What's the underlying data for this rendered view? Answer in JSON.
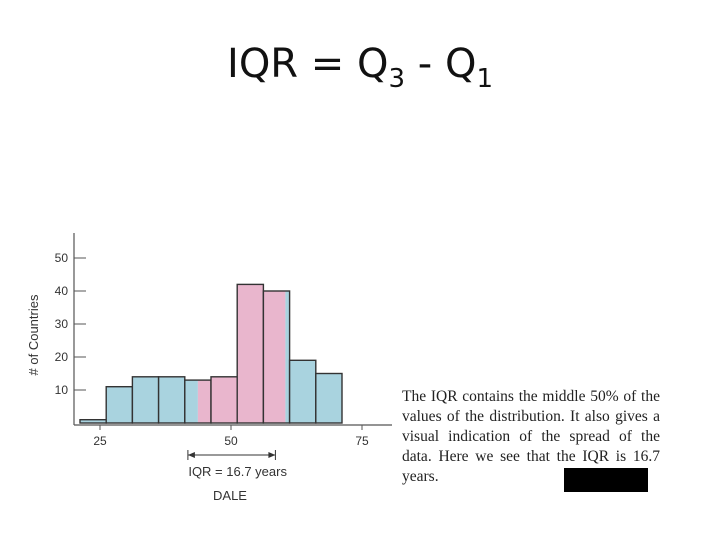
{
  "slide": {
    "title_base": "IQR = Q",
    "title_sub1": "3",
    "title_mid": " - Q",
    "title_sub2": "1"
  },
  "caption": {
    "text": "The IQR contains the middle 50% of the values of the distribution. It also gives a visual indication of the spread of the data. Here we see that the IQR is 16.7 years."
  },
  "colors": {
    "bar_fill": "#a9d3df",
    "iqr_fill": "#e9b6cd",
    "bar_stroke": "#333333"
  },
  "chart_data": {
    "type": "bar",
    "xlabel": "DALE",
    "ylabel": "# of Countries",
    "xlim": [
      25,
      75
    ],
    "ylim": [
      0,
      55
    ],
    "x_ticks": [
      25,
      50,
      75
    ],
    "y_ticks": [
      10,
      20,
      30,
      40,
      50
    ],
    "bin_width": 5,
    "bins": [
      {
        "start": 25,
        "end": 30,
        "count": 1
      },
      {
        "start": 30,
        "end": 35,
        "count": 11
      },
      {
        "start": 35,
        "end": 40,
        "count": 14
      },
      {
        "start": 40,
        "end": 45,
        "count": 14
      },
      {
        "start": 45,
        "end": 50,
        "count": 13
      },
      {
        "start": 50,
        "end": 55,
        "count": 14
      },
      {
        "start": 55,
        "end": 60,
        "count": 42
      },
      {
        "start": 60,
        "end": 65,
        "count": 40
      },
      {
        "start": 65,
        "end": 70,
        "count": 19
      },
      {
        "start": 70,
        "end": 75,
        "count": 15
      }
    ],
    "iqr": {
      "q1": 47.5,
      "q3": 64.2,
      "label": "IQR = 16.7 years"
    }
  }
}
